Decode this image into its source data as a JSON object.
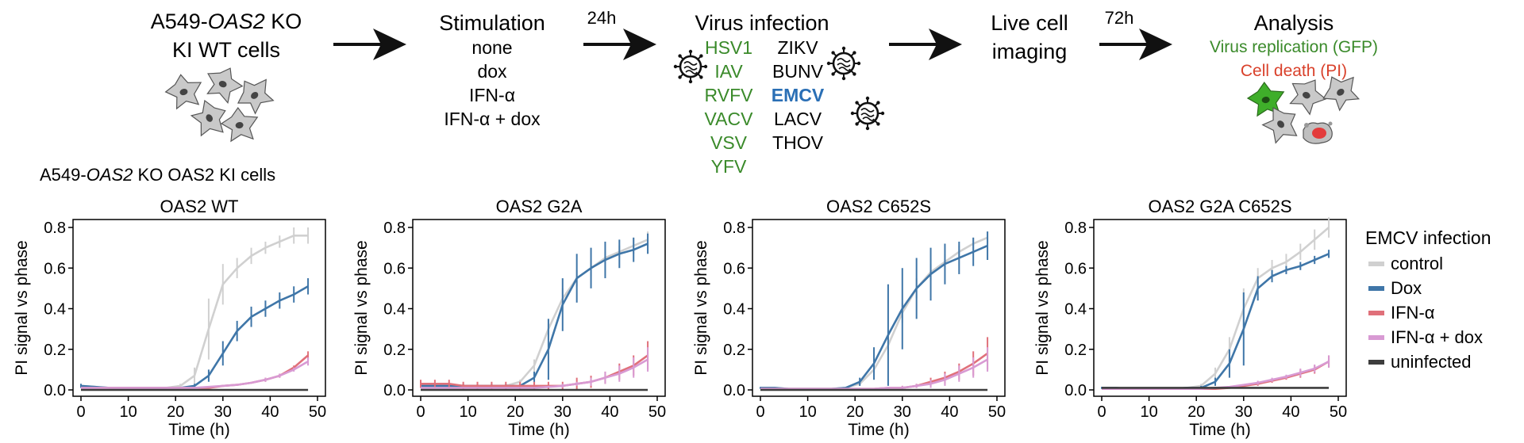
{
  "workflow": {
    "cells": {
      "line1_pre": "A549-",
      "line1_italic": "OAS2",
      "line1_post": " KO",
      "line2": "KI WT cells"
    },
    "arrow_24h": "24h",
    "arrow_72h": "72h",
    "stimulation": {
      "title": "Stimulation",
      "items": [
        "none",
        "dox",
        "IFN-α",
        "IFN-α + dox"
      ]
    },
    "virus_infection": {
      "title": "Virus infection",
      "left_viruses": [
        "HSV1",
        "IAV",
        "RVFV",
        "VACV",
        "VSV",
        "YFV"
      ],
      "right_viruses": [
        "ZIKV",
        "BUNV",
        "EMCV",
        "LACV",
        "THOV"
      ]
    },
    "live_imaging": {
      "line1": "Live cell",
      "line2": "imaging"
    },
    "analysis": {
      "title": "Analysis",
      "line1": "Virus replication (GFP)",
      "line2": "Cell death (PI)"
    }
  },
  "cells_label": {
    "pre": "A549-",
    "italic": "OAS2",
    "post": " KO OAS2 KI cells"
  },
  "colors": {
    "green": "#3a8a2a",
    "red_text": "#d9412b",
    "emcv_blue": "#2a6fb5",
    "control": "#d0d0d0",
    "dox": "#3f76a8",
    "ifn": "#e0707a",
    "ifn_dox": "#d89ad3",
    "uninfected": "#3d3d3d"
  },
  "chart_data": [
    {
      "type": "line",
      "title": "OAS2 WT",
      "xlabel": "Time (h)",
      "ylabel": "PI signal vs phase",
      "xlim": [
        0,
        50
      ],
      "ylim": [
        0,
        0.8
      ],
      "xticks": [
        "0",
        "10",
        "20",
        "30",
        "40",
        "50"
      ],
      "yticks": [
        "0.0",
        "0.2",
        "0.4",
        "0.6",
        "0.8"
      ],
      "x": [
        0,
        3,
        6,
        9,
        12,
        15,
        18,
        21,
        24,
        27,
        30,
        33,
        36,
        39,
        42,
        45,
        48
      ],
      "series": [
        {
          "name": "control",
          "values": [
            0.02,
            0.015,
            0.01,
            0.01,
            0.01,
            0.01,
            0.01,
            0.02,
            0.07,
            0.3,
            0.52,
            0.6,
            0.66,
            0.7,
            0.73,
            0.76,
            0.76
          ],
          "err": [
            0.01,
            0,
            0,
            0,
            0,
            0,
            0,
            0.01,
            0.04,
            0.15,
            0.1,
            0.05,
            0.04,
            0.03,
            0.03,
            0.04,
            0.04
          ]
        },
        {
          "name": "Dox",
          "values": [
            0.02,
            0.015,
            0.01,
            0.01,
            0.01,
            0.01,
            0.01,
            0.01,
            0.02,
            0.07,
            0.18,
            0.29,
            0.36,
            0.4,
            0.44,
            0.47,
            0.51
          ],
          "err": [
            0.01,
            0,
            0,
            0,
            0,
            0,
            0,
            0,
            0.01,
            0.03,
            0.06,
            0.05,
            0.05,
            0.04,
            0.04,
            0.04,
            0.04
          ]
        },
        {
          "name": "IFN-α",
          "values": [
            0.01,
            0.01,
            0.01,
            0.01,
            0.01,
            0.01,
            0.01,
            0.01,
            0.01,
            0.01,
            0.02,
            0.025,
            0.035,
            0.05,
            0.07,
            0.11,
            0.17
          ],
          "err": [
            0,
            0,
            0,
            0,
            0,
            0,
            0,
            0,
            0,
            0,
            0,
            0,
            0,
            0.01,
            0.01,
            0.01,
            0.02
          ]
        },
        {
          "name": "IFN-α + dox",
          "values": [
            0.01,
            0.01,
            0.01,
            0.01,
            0.01,
            0.01,
            0.01,
            0.01,
            0.01,
            0.015,
            0.02,
            0.025,
            0.035,
            0.05,
            0.07,
            0.1,
            0.14
          ],
          "err": [
            0,
            0,
            0,
            0,
            0,
            0,
            0,
            0,
            0,
            0,
            0,
            0,
            0,
            0.01,
            0.01,
            0.01,
            0.02
          ]
        },
        {
          "name": "uninfected",
          "values": [
            0,
            0,
            0,
            0,
            0,
            0,
            0,
            0,
            0,
            0,
            0,
            0,
            0,
            0,
            0,
            0,
            0
          ],
          "err": [
            0,
            0,
            0,
            0,
            0,
            0,
            0,
            0,
            0,
            0,
            0,
            0,
            0,
            0,
            0,
            0,
            0
          ]
        }
      ]
    },
    {
      "type": "line",
      "title": "OAS2 G2A",
      "xlabel": "Time (h)",
      "ylabel": "PI signal vs phase",
      "xlim": [
        0,
        50
      ],
      "ylim": [
        0,
        0.8
      ],
      "xticks": [
        "0",
        "10",
        "20",
        "30",
        "40",
        "50"
      ],
      "yticks": [
        "0.0",
        "0.2",
        "0.4",
        "0.6",
        "0.8"
      ],
      "x": [
        0,
        3,
        6,
        9,
        12,
        15,
        18,
        21,
        24,
        27,
        30,
        33,
        36,
        39,
        42,
        45,
        48
      ],
      "series": [
        {
          "name": "control",
          "values": [
            0.02,
            0.02,
            0.02,
            0.02,
            0.02,
            0.02,
            0.02,
            0.04,
            0.12,
            0.3,
            0.45,
            0.55,
            0.6,
            0.65,
            0.68,
            0.71,
            0.74
          ],
          "err": [
            0.01,
            0.01,
            0.01,
            0.01,
            0.01,
            0.01,
            0.01,
            0.01,
            0.03,
            0.05,
            0.05,
            0.04,
            0.04,
            0.03,
            0.03,
            0.04,
            0.04
          ]
        },
        {
          "name": "Dox",
          "values": [
            0.02,
            0.02,
            0.02,
            0.02,
            0.02,
            0.02,
            0.02,
            0.02,
            0.06,
            0.2,
            0.42,
            0.55,
            0.6,
            0.64,
            0.67,
            0.69,
            0.72
          ],
          "err": [
            0.01,
            0.01,
            0.01,
            0.01,
            0.01,
            0.01,
            0.01,
            0.01,
            0.03,
            0.15,
            0.13,
            0.12,
            0.1,
            0.09,
            0.07,
            0.06,
            0.05
          ]
        },
        {
          "name": "IFN-α",
          "values": [
            0.03,
            0.03,
            0.03,
            0.02,
            0.02,
            0.02,
            0.02,
            0.02,
            0.02,
            0.02,
            0.02,
            0.03,
            0.04,
            0.06,
            0.09,
            0.12,
            0.17
          ],
          "err": [
            0.02,
            0.02,
            0.02,
            0.02,
            0.02,
            0.02,
            0.02,
            0.02,
            0.02,
            0.02,
            0.02,
            0.03,
            0.03,
            0.03,
            0.04,
            0.05,
            0.07
          ]
        },
        {
          "name": "IFN-α + dox",
          "values": [
            0.01,
            0.01,
            0.01,
            0.01,
            0.01,
            0.01,
            0.01,
            0.01,
            0.01,
            0.015,
            0.02,
            0.03,
            0.04,
            0.06,
            0.08,
            0.11,
            0.15
          ],
          "err": [
            0,
            0,
            0,
            0,
            0,
            0,
            0,
            0,
            0,
            0,
            0.01,
            0.01,
            0.02,
            0.03,
            0.04,
            0.05,
            0.06
          ]
        },
        {
          "name": "uninfected",
          "values": [
            0,
            0,
            0,
            0,
            0,
            0,
            0,
            0,
            0,
            0,
            0,
            0,
            0,
            0,
            0,
            0,
            0
          ],
          "err": [
            0,
            0,
            0,
            0,
            0,
            0,
            0,
            0,
            0,
            0,
            0,
            0,
            0,
            0,
            0,
            0,
            0
          ]
        }
      ]
    },
    {
      "type": "line",
      "title": "OAS2 C652S",
      "xlabel": "Time (h)",
      "ylabel": "PI signal vs phase",
      "xlim": [
        0,
        50
      ],
      "ylim": [
        0,
        0.8
      ],
      "xticks": [
        "0",
        "10",
        "20",
        "30",
        "40",
        "50"
      ],
      "yticks": [
        "0.0",
        "0.2",
        "0.4",
        "0.6",
        "0.8"
      ],
      "x": [
        0,
        3,
        6,
        9,
        12,
        15,
        18,
        21,
        24,
        27,
        30,
        33,
        36,
        39,
        42,
        45,
        48
      ],
      "series": [
        {
          "name": "control",
          "values": [
            0.01,
            0.01,
            0.005,
            0.005,
            0.005,
            0.005,
            0.01,
            0.03,
            0.1,
            0.22,
            0.38,
            0.5,
            0.58,
            0.63,
            0.68,
            0.72,
            0.75
          ],
          "err": [
            0.005,
            0,
            0,
            0,
            0,
            0,
            0,
            0.01,
            0.03,
            0.05,
            0.05,
            0.05,
            0.04,
            0.04,
            0.03,
            0.03,
            0.03
          ]
        },
        {
          "name": "Dox",
          "values": [
            0.01,
            0.01,
            0.005,
            0.005,
            0.005,
            0.005,
            0.01,
            0.04,
            0.13,
            0.27,
            0.4,
            0.5,
            0.57,
            0.62,
            0.65,
            0.68,
            0.71
          ],
          "err": [
            0.005,
            0,
            0,
            0,
            0,
            0,
            0,
            0.02,
            0.08,
            0.25,
            0.2,
            0.15,
            0.13,
            0.1,
            0.08,
            0.07,
            0.07
          ]
        },
        {
          "name": "IFN-α",
          "values": [
            0.005,
            0.005,
            0.005,
            0.005,
            0.005,
            0.005,
            0.005,
            0.005,
            0.005,
            0.01,
            0.01,
            0.02,
            0.04,
            0.06,
            0.09,
            0.13,
            0.18
          ],
          "err": [
            0,
            0,
            0,
            0,
            0,
            0,
            0,
            0,
            0,
            0,
            0.01,
            0.01,
            0.02,
            0.03,
            0.04,
            0.06,
            0.08
          ]
        },
        {
          "name": "IFN-α + dox",
          "values": [
            0.005,
            0.005,
            0.005,
            0.005,
            0.005,
            0.005,
            0.005,
            0.005,
            0.005,
            0.01,
            0.01,
            0.02,
            0.03,
            0.05,
            0.08,
            0.11,
            0.15
          ],
          "err": [
            0,
            0,
            0,
            0,
            0,
            0,
            0,
            0,
            0,
            0,
            0.01,
            0.01,
            0.02,
            0.03,
            0.04,
            0.05,
            0.06
          ]
        },
        {
          "name": "uninfected",
          "values": [
            0,
            0,
            0,
            0,
            0,
            0,
            0,
            0,
            0,
            0,
            0,
            0,
            0,
            0,
            0,
            0,
            0
          ],
          "err": [
            0,
            0,
            0,
            0,
            0,
            0,
            0,
            0,
            0,
            0,
            0,
            0,
            0,
            0,
            0,
            0,
            0
          ]
        }
      ]
    },
    {
      "type": "line",
      "title": "OAS2 G2A C652S",
      "xlabel": "Time (h)",
      "ylabel": "PI signal vs phase",
      "xlim": [
        0,
        50
      ],
      "ylim": [
        0,
        0.8
      ],
      "xticks": [
        "0",
        "10",
        "20",
        "30",
        "40",
        "50"
      ],
      "yticks": [
        "0.0",
        "0.2",
        "0.4",
        "0.6",
        "0.8"
      ],
      "x": [
        0,
        3,
        6,
        9,
        12,
        15,
        18,
        21,
        24,
        27,
        30,
        33,
        36,
        39,
        42,
        45,
        48
      ],
      "series": [
        {
          "name": "control",
          "values": [
            0.01,
            0.01,
            0.005,
            0.005,
            0.005,
            0.005,
            0.01,
            0.02,
            0.08,
            0.2,
            0.4,
            0.55,
            0.6,
            0.63,
            0.68,
            0.74,
            0.8
          ],
          "err": [
            0.005,
            0,
            0,
            0,
            0,
            0,
            0,
            0.01,
            0.03,
            0.06,
            0.1,
            0.05,
            0.04,
            0.04,
            0.04,
            0.05,
            0.05
          ]
        },
        {
          "name": "Dox",
          "values": [
            0.01,
            0.01,
            0.005,
            0.005,
            0.005,
            0.005,
            0.01,
            0.01,
            0.04,
            0.13,
            0.3,
            0.5,
            0.56,
            0.59,
            0.61,
            0.64,
            0.67
          ],
          "err": [
            0.005,
            0,
            0,
            0,
            0,
            0,
            0,
            0.01,
            0.02,
            0.07,
            0.18,
            0.06,
            0.03,
            0.02,
            0.02,
            0.02,
            0.02
          ]
        },
        {
          "name": "IFN-α",
          "values": [
            0.005,
            0.005,
            0.005,
            0.005,
            0.005,
            0.005,
            0.005,
            0.005,
            0.005,
            0.01,
            0.02,
            0.03,
            0.045,
            0.06,
            0.08,
            0.1,
            0.14
          ],
          "err": [
            0,
            0,
            0,
            0,
            0,
            0,
            0,
            0,
            0,
            0,
            0,
            0.01,
            0.01,
            0.01,
            0.02,
            0.02,
            0.03
          ]
        },
        {
          "name": "IFN-α + dox",
          "values": [
            0.005,
            0.005,
            0.005,
            0.005,
            0.005,
            0.005,
            0.005,
            0.005,
            0.01,
            0.015,
            0.025,
            0.035,
            0.05,
            0.065,
            0.085,
            0.105,
            0.14
          ],
          "err": [
            0,
            0,
            0,
            0,
            0,
            0,
            0,
            0,
            0,
            0,
            0,
            0.01,
            0.01,
            0.01,
            0.02,
            0.02,
            0.03
          ]
        },
        {
          "name": "uninfected",
          "values": [
            0.01,
            0.01,
            0.01,
            0.01,
            0.01,
            0.01,
            0.01,
            0.01,
            0.01,
            0.01,
            0.01,
            0.01,
            0.01,
            0.01,
            0.01,
            0.01,
            0.01
          ],
          "err": [
            0,
            0,
            0,
            0,
            0,
            0,
            0,
            0,
            0,
            0,
            0,
            0,
            0,
            0,
            0,
            0,
            0
          ]
        }
      ]
    }
  ],
  "legend": {
    "title": "EMCV infection",
    "entries": [
      {
        "label": "control",
        "color": "#d0d0d0"
      },
      {
        "label": "Dox",
        "color": "#3f76a8"
      },
      {
        "label": "IFN-α",
        "color": "#e0707a"
      },
      {
        "label": "IFN-α + dox",
        "color": "#d89ad3"
      },
      {
        "label": "uninfected",
        "color": "#3d3d3d"
      }
    ]
  }
}
